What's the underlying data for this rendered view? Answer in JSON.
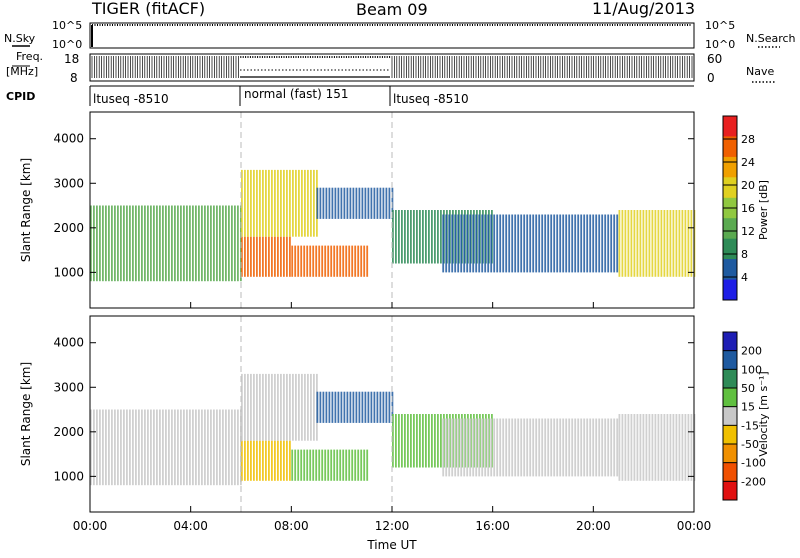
{
  "header": {
    "title": "TIGER (fitACF)",
    "beam": "Beam 09",
    "date": "11/Aug/2013"
  },
  "panels": {
    "nsky_label": "N.Sky",
    "nsearch_label": "N.Search",
    "freq_label_top": "Freq.",
    "freq_label_unit": "[MHz]",
    "nave_label": "Nave",
    "cpid_label": "CPID",
    "nsky_ticks": [
      "10^5",
      "10^0"
    ],
    "freq_ticks": [
      "18",
      "8"
    ],
    "nave_ticks": [
      "60",
      "0"
    ],
    "cpid_segments": [
      {
        "label": "ltuseq -8510",
        "start": 0,
        "end": 6
      },
      {
        "label": "normal (fast) 151",
        "start": 6,
        "end": 12
      },
      {
        "label": "ltuseq -8510",
        "start": 12,
        "end": 24
      }
    ]
  },
  "colorbars": {
    "power": {
      "label": "Power [dB]",
      "ticks": [
        "4",
        "8",
        "12",
        "16",
        "20",
        "24",
        "28"
      ],
      "colors": [
        "#1e1ee6",
        "#1e5aa0",
        "#2e8b57",
        "#5aaa50",
        "#90c840",
        "#e0d020",
        "#f0a000",
        "#f06000",
        "#e82020"
      ]
    },
    "velocity": {
      "label": "Velocity [m s⁻¹]",
      "ticks": [
        "200",
        "100",
        "50",
        "15",
        "-15",
        "-50",
        "-100",
        "-200"
      ],
      "colors": [
        "#1e1eb4",
        "#1e5aa0",
        "#2e8b57",
        "#60c040",
        "#c8c8c8",
        "#f0c000",
        "#f09000",
        "#f05000",
        "#e01010"
      ]
    }
  },
  "chart_data": [
    {
      "type": "heatmap",
      "title": "",
      "xlabel": "Time UT",
      "ylabel": "Slant Range [km]",
      "xlim": [
        0,
        24
      ],
      "ylim": [
        200,
        4600
      ],
      "xtick_labels": [
        "00:00",
        "04:00",
        "08:00",
        "12:00",
        "16:00",
        "20:00",
        "00:00"
      ],
      "ytick_labels": [
        "1000",
        "2000",
        "3000",
        "4000"
      ],
      "zlabel": "Power [dB]",
      "zlim": [
        0,
        32
      ],
      "regions": [
        {
          "t0": 0,
          "t1": 6,
          "r0": 800,
          "r1": 2500,
          "z": 12
        },
        {
          "t0": 6,
          "t1": 8,
          "r0": 900,
          "r1": 1800,
          "z": 27
        },
        {
          "t0": 6,
          "t1": 9,
          "r0": 1800,
          "r1": 3300,
          "z": 20
        },
        {
          "t0": 8,
          "t1": 11,
          "r0": 900,
          "r1": 1600,
          "z": 26
        },
        {
          "t0": 9,
          "t1": 12,
          "r0": 2200,
          "r1": 2900,
          "z": 6
        },
        {
          "t0": 12,
          "t1": 16,
          "r0": 1200,
          "r1": 2400,
          "z": 9
        },
        {
          "t0": 14,
          "t1": 21,
          "r0": 1000,
          "r1": 2300,
          "z": 7
        },
        {
          "t0": 21,
          "t1": 24,
          "r0": 900,
          "r1": 2400,
          "z": 18
        }
      ]
    },
    {
      "type": "heatmap",
      "title": "",
      "xlabel": "Time UT",
      "ylabel": "Slant Range [km]",
      "xlim": [
        0,
        24
      ],
      "ylim": [
        200,
        4600
      ],
      "xtick_labels": [
        "00:00",
        "04:00",
        "08:00",
        "12:00",
        "16:00",
        "20:00",
        "00:00"
      ],
      "ytick_labels": [
        "1000",
        "2000",
        "3000",
        "4000"
      ],
      "zlabel": "Velocity [m s⁻¹]",
      "zlim": [
        -250,
        250
      ],
      "regions": [
        {
          "t0": 0,
          "t1": 6,
          "r0": 800,
          "r1": 2500,
          "z": 0
        },
        {
          "t0": 6,
          "t1": 8,
          "r0": 900,
          "r1": 1800,
          "z": -60
        },
        {
          "t0": 6,
          "t1": 9,
          "r0": 1800,
          "r1": 3300,
          "z": 5
        },
        {
          "t0": 8,
          "t1": 11,
          "r0": 900,
          "r1": 1600,
          "z": 40
        },
        {
          "t0": 9,
          "t1": 12,
          "r0": 2200,
          "r1": 2900,
          "z": 150
        },
        {
          "t0": 12,
          "t1": 16,
          "r0": 1200,
          "r1": 2400,
          "z": 30
        },
        {
          "t0": 14,
          "t1": 21,
          "r0": 1000,
          "r1": 2300,
          "z": 20
        },
        {
          "t0": 21,
          "t1": 24,
          "r0": 900,
          "r1": 2400,
          "z": 0
        }
      ]
    }
  ]
}
